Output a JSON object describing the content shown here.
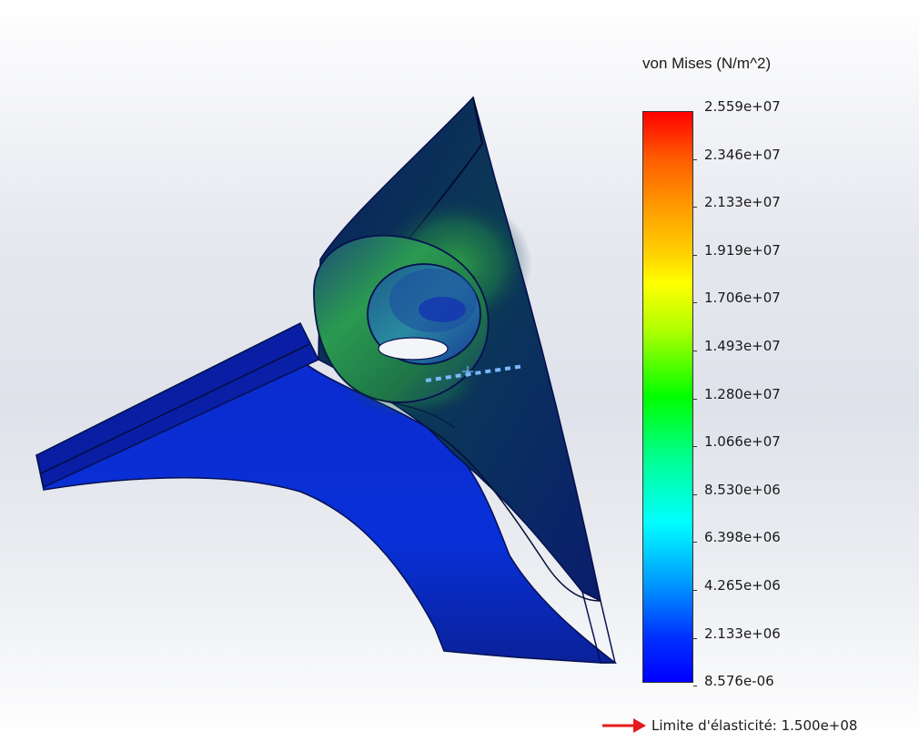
{
  "legend": {
    "title": "von Mises (N/m^2)",
    "ticks": [
      "2.559e+07",
      "2.346e+07",
      "2.133e+07",
      "1.919e+07",
      "1.706e+07",
      "1.493e+07",
      "1.280e+07",
      "1.066e+07",
      "8.530e+06",
      "6.398e+06",
      "4.265e+06",
      "2.133e+06",
      "8.576e-06"
    ],
    "max_color": "#ff0000",
    "min_color": "#0000ff"
  },
  "yield": {
    "label": "Limite d'élasticité: 1.500e+08",
    "arrow_color": "#e41c1c",
    "icon": "right-arrow-icon"
  },
  "model": {
    "icon": "stress-plot-part",
    "background_colors": [
      "#ffffff",
      "#e0e3ea"
    ],
    "stress_colors": [
      "#0a1a9e",
      "#0a2dc8",
      "#1a6a8a",
      "#1e8a4a",
      "#2ea84a"
    ]
  }
}
